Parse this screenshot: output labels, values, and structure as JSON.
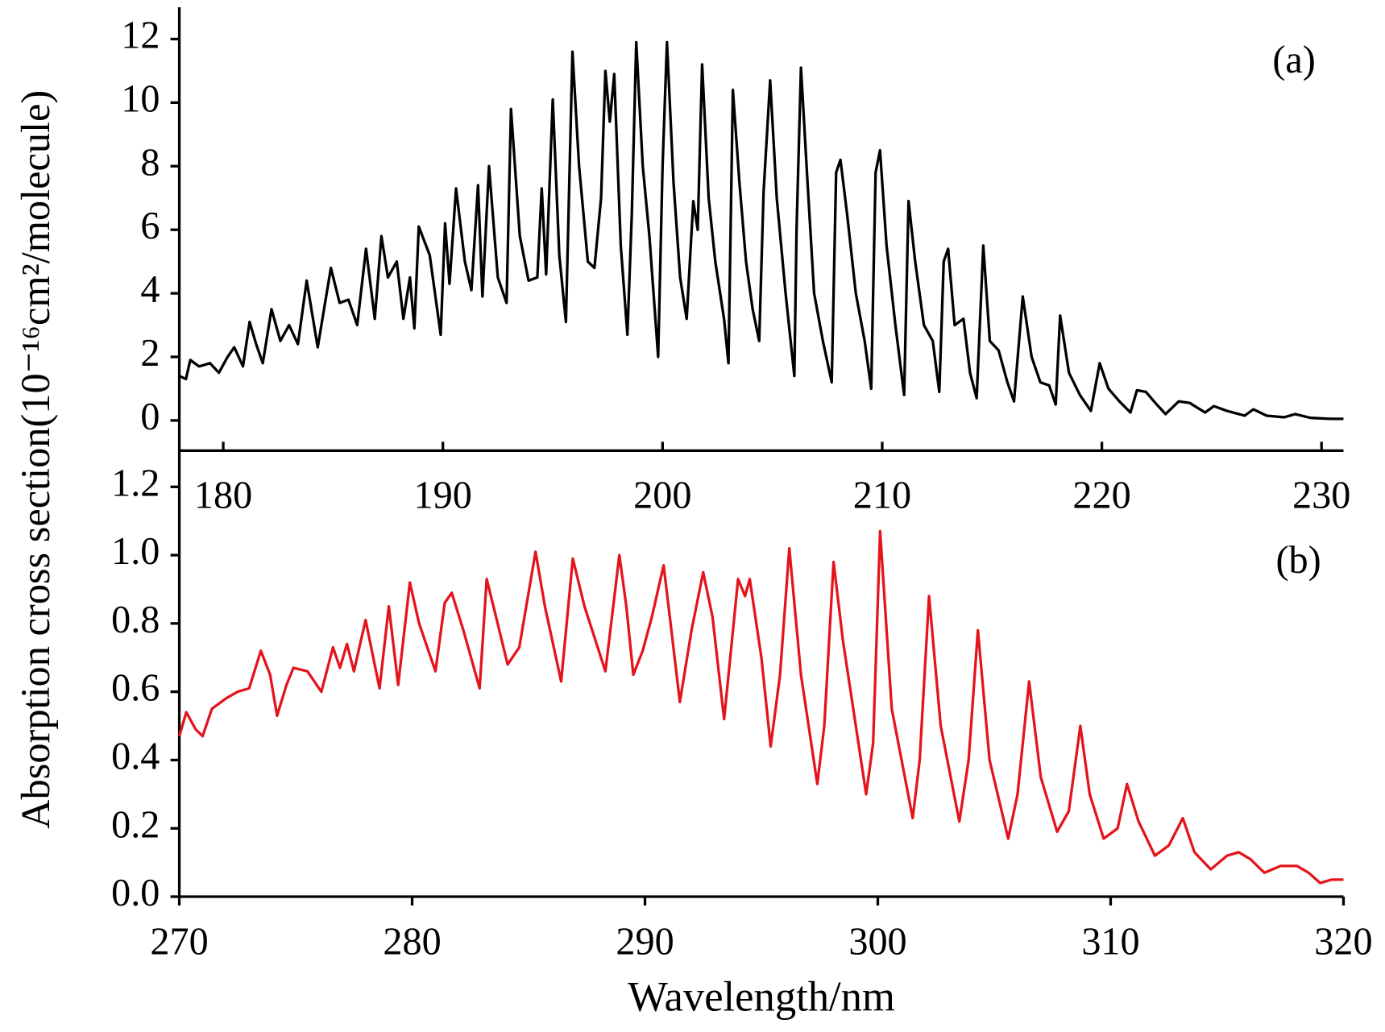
{
  "chart_data": [
    {
      "type": "line",
      "annotation": "(a)",
      "ylabel": "Absorption cross section(10⁻¹⁶cm²/molecule)",
      "xlim": [
        178,
        231
      ],
      "ylim": [
        -0.95,
        13
      ],
      "xticks": [
        180,
        190,
        200,
        210,
        220,
        230
      ],
      "yticks": [
        0,
        2,
        4,
        6,
        8,
        10,
        12
      ],
      "x": [
        178,
        178.3,
        178.5,
        178.9,
        179.4,
        179.8,
        180.2,
        180.5,
        180.9,
        181.2,
        181.5,
        181.8,
        182.2,
        182.6,
        183.0,
        183.4,
        183.8,
        184.3,
        184.9,
        185.3,
        185.7,
        186.1,
        186.5,
        186.9,
        187.2,
        187.5,
        187.9,
        188.2,
        188.5,
        188.7,
        188.9,
        189.4,
        189.9,
        190.1,
        190.3,
        190.6,
        191.0,
        191.3,
        191.6,
        191.8,
        192.1,
        192.5,
        192.9,
        193.1,
        193.5,
        193.9,
        194.3,
        194.5,
        194.7,
        195.0,
        195.3,
        195.6,
        195.9,
        196.2,
        196.6,
        196.9,
        197.2,
        197.4,
        197.6,
        197.8,
        198.1,
        198.4,
        198.6,
        198.8,
        199.1,
        199.4,
        199.8,
        200.0,
        200.2,
        200.5,
        200.8,
        201.1,
        201.4,
        201.6,
        201.8,
        202.1,
        202.4,
        202.8,
        203.0,
        203.2,
        203.5,
        203.8,
        204.1,
        204.4,
        204.6,
        204.9,
        205.2,
        205.6,
        206.0,
        206.1,
        206.3,
        206.6,
        206.9,
        207.3,
        207.7,
        207.9,
        208.1,
        208.4,
        208.8,
        209.2,
        209.5,
        209.7,
        209.9,
        210.2,
        210.6,
        211.0,
        211.2,
        211.5,
        211.9,
        212.3,
        212.6,
        212.8,
        213.0,
        213.3,
        213.7,
        214.0,
        214.3,
        214.6,
        214.9,
        215.3,
        215.7,
        216.0,
        216.4,
        216.8,
        217.2,
        217.6,
        217.9,
        218.1,
        218.5,
        219.0,
        219.5,
        219.9,
        220.3,
        220.8,
        221.3,
        221.6,
        222.0,
        222.5,
        222.9,
        223.5,
        224.0,
        224.7,
        225.1,
        225.7,
        226.5,
        226.9,
        227.5,
        228.3,
        228.8,
        229.5,
        230.4,
        231
      ],
      "series": [
        {
          "color": "#000000",
          "values": [
            1.4,
            1.3,
            1.9,
            1.7,
            1.8,
            1.5,
            2.0,
            2.3,
            1.7,
            3.1,
            2.4,
            1.8,
            3.5,
            2.5,
            3.0,
            2.4,
            4.4,
            2.3,
            4.8,
            3.7,
            3.8,
            3.0,
            5.4,
            3.2,
            5.8,
            4.5,
            5.0,
            3.2,
            4.5,
            2.9,
            6.1,
            5.2,
            2.7,
            6.2,
            4.3,
            7.3,
            5.0,
            4.1,
            7.4,
            3.9,
            8.0,
            4.5,
            3.7,
            9.8,
            5.8,
            4.4,
            4.5,
            7.3,
            4.6,
            10.1,
            5.2,
            3.1,
            11.6,
            8.0,
            5.0,
            4.8,
            7.0,
            11.0,
            9.4,
            10.9,
            5.5,
            2.7,
            6.5,
            11.9,
            8.0,
            5.8,
            2.0,
            8.0,
            11.9,
            7.5,
            4.5,
            3.2,
            6.9,
            6.0,
            11.2,
            7.0,
            5.0,
            3.2,
            1.8,
            10.4,
            7.5,
            5.0,
            3.5,
            2.5,
            7.2,
            10.7,
            7.0,
            4.0,
            1.4,
            6.0,
            11.1,
            7.5,
            4.0,
            2.5,
            1.2,
            7.8,
            8.2,
            6.5,
            4.0,
            2.5,
            1.0,
            7.8,
            8.5,
            5.5,
            3.0,
            0.8,
            6.9,
            5.0,
            3.0,
            2.5,
            0.9,
            5.0,
            5.4,
            3.0,
            3.2,
            1.5,
            0.7,
            5.5,
            2.5,
            2.2,
            1.2,
            0.6,
            3.9,
            2.0,
            1.2,
            1.1,
            0.5,
            3.3,
            1.5,
            0.8,
            0.3,
            1.8,
            1.0,
            0.6,
            0.25,
            0.95,
            0.9,
            0.5,
            0.2,
            0.6,
            0.55,
            0.25,
            0.45,
            0.3,
            0.15,
            0.35,
            0.15,
            0.1,
            0.2,
            0.08,
            0.05,
            0.05
          ]
        }
      ]
    },
    {
      "type": "line",
      "annotation": "(b)",
      "xlabel": "Wavelength/nm",
      "xlim": [
        270,
        320
      ],
      "ylim": [
        0,
        1.306
      ],
      "xticks": [
        270,
        280,
        290,
        300,
        310,
        320
      ],
      "yticks": [
        {
          "value": 0,
          "label": "0.0"
        },
        0.2,
        0.4,
        0.6,
        0.8,
        {
          "value": 1,
          "label": "1.0"
        },
        1.2
      ],
      "x": [
        270,
        270.3,
        270.7,
        271.0,
        271.4,
        272.0,
        272.5,
        273.0,
        273.5,
        273.9,
        274.2,
        274.6,
        274.9,
        275.5,
        276.1,
        276.6,
        276.9,
        277.2,
        277.5,
        278.0,
        278.6,
        279.0,
        279.4,
        279.9,
        280.3,
        281.0,
        281.4,
        281.7,
        282.2,
        282.9,
        283.2,
        283.6,
        284.1,
        284.6,
        285.3,
        285.7,
        286.4,
        286.9,
        287.4,
        288.3,
        288.9,
        289.2,
        289.5,
        289.9,
        290.3,
        290.8,
        291.1,
        291.5,
        292.0,
        292.5,
        292.9,
        293.4,
        294.0,
        294.3,
        294.5,
        295.0,
        295.4,
        295.8,
        296.2,
        296.7,
        297.4,
        297.7,
        298.1,
        298.5,
        299.5,
        299.8,
        300.1,
        300.6,
        301.5,
        301.8,
        302.2,
        302.7,
        303.5,
        303.9,
        304.3,
        304.8,
        305.6,
        306.0,
        306.5,
        307.0,
        307.7,
        308.2,
        308.7,
        309.1,
        309.7,
        310.3,
        310.7,
        311.2,
        311.9,
        312.5,
        313.1,
        313.6,
        314.3,
        315.0,
        315.5,
        316.0,
        316.6,
        317.3,
        318.0,
        318.5,
        319.0,
        319.5,
        320
      ],
      "series": [
        {
          "color": "#e3141c",
          "values": [
            0.47,
            0.54,
            0.49,
            0.47,
            0.55,
            0.58,
            0.6,
            0.61,
            0.72,
            0.65,
            0.53,
            0.62,
            0.67,
            0.66,
            0.6,
            0.73,
            0.67,
            0.74,
            0.66,
            0.81,
            0.61,
            0.85,
            0.62,
            0.92,
            0.8,
            0.66,
            0.86,
            0.89,
            0.78,
            0.61,
            0.93,
            0.82,
            0.68,
            0.73,
            1.01,
            0.85,
            0.63,
            0.99,
            0.85,
            0.66,
            1.0,
            0.85,
            0.65,
            0.72,
            0.82,
            0.97,
            0.8,
            0.57,
            0.78,
            0.95,
            0.82,
            0.52,
            0.93,
            0.88,
            0.93,
            0.7,
            0.44,
            0.65,
            1.02,
            0.65,
            0.33,
            0.5,
            0.98,
            0.75,
            0.3,
            0.45,
            1.07,
            0.55,
            0.23,
            0.4,
            0.88,
            0.5,
            0.22,
            0.4,
            0.78,
            0.4,
            0.17,
            0.3,
            0.63,
            0.35,
            0.19,
            0.25,
            0.5,
            0.3,
            0.17,
            0.2,
            0.33,
            0.22,
            0.12,
            0.15,
            0.23,
            0.13,
            0.08,
            0.12,
            0.13,
            0.11,
            0.07,
            0.09,
            0.09,
            0.07,
            0.04,
            0.05,
            0.05
          ]
        }
      ]
    }
  ]
}
